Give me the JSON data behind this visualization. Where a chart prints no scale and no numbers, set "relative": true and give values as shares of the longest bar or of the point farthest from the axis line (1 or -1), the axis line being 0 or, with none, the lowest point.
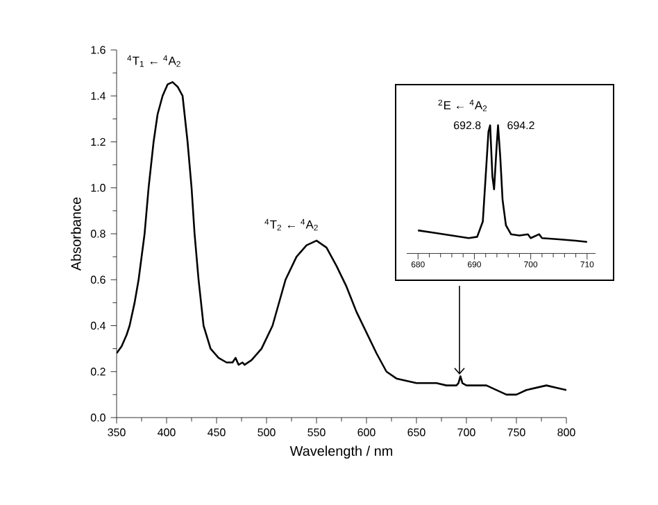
{
  "chart_data": [
    {
      "type": "line",
      "xlabel": "Wavelength / nm",
      "ylabel": "Absorbance",
      "color": "#000000",
      "xlim": [
        350,
        800
      ],
      "xticks": [
        350,
        400,
        450,
        500,
        550,
        600,
        650,
        700,
        750,
        800
      ],
      "ylim": [
        0,
        1.6
      ],
      "yticks": [
        {
          "value": 0,
          "label": "0.0"
        },
        0.2,
        0.4,
        0.6,
        0.8,
        {
          "value": 1,
          "label": "1.0"
        },
        1.2,
        1.4,
        1.6
      ],
      "annotations": [
        "$^{4}$T$_{1}$ ← $^{4}$A$_{2}$",
        "$^{4}$T$_{2}$ ← $^{4}$A$_{2}$"
      ],
      "x": [
        350,
        355,
        360,
        363,
        368,
        372,
        378,
        382,
        387,
        391,
        396,
        401,
        406,
        411,
        416,
        421,
        425,
        428,
        432,
        437,
        444,
        452,
        460,
        466,
        469,
        472,
        476,
        478,
        485,
        495,
        506,
        519,
        530,
        540,
        550,
        560,
        570,
        580,
        590,
        600,
        610,
        620,
        630,
        640,
        650,
        660,
        670,
        680,
        690,
        692,
        694,
        696,
        700,
        710,
        720,
        730,
        740,
        750,
        760,
        770,
        780,
        790,
        800
      ],
      "values": [
        0.28,
        0.31,
        0.36,
        0.4,
        0.5,
        0.6,
        0.8,
        1.0,
        1.2,
        1.32,
        1.4,
        1.45,
        1.46,
        1.44,
        1.4,
        1.2,
        1.0,
        0.8,
        0.6,
        0.4,
        0.3,
        0.26,
        0.24,
        0.24,
        0.26,
        0.23,
        0.24,
        0.23,
        0.25,
        0.3,
        0.4,
        0.6,
        0.7,
        0.75,
        0.77,
        0.74,
        0.66,
        0.57,
        0.46,
        0.37,
        0.28,
        0.2,
        0.17,
        0.16,
        0.15,
        0.15,
        0.15,
        0.14,
        0.14,
        0.15,
        0.18,
        0.15,
        0.14,
        0.14,
        0.14,
        0.12,
        0.1,
        0.1,
        0.12,
        0.13,
        0.14,
        0.13,
        0.12
      ]
    },
    {
      "type": "line",
      "relative": true,
      "tick_labels": "x",
      "color": "#000000",
      "xlim": [
        678,
        711.5
      ],
      "xticks": [
        680,
        690,
        700,
        710
      ],
      "annotations": [
        "$^{2}$E ← $^{4}$A$_{2}$",
        {
          "text": "692.8",
          "x": 692.8,
          "y": 1
        },
        {
          "text": "694.2",
          "x": 694.2,
          "y": 1
        }
      ],
      "x": [
        680,
        683,
        686,
        689,
        690.5,
        691.5,
        692,
        692.5,
        692.8,
        693.2,
        693.5,
        693.9,
        694.2,
        694.6,
        695,
        695.6,
        696.5,
        698,
        699.5,
        700,
        701.5,
        702,
        705,
        708,
        710
      ],
      "values": [
        0.18,
        0.16,
        0.14,
        0.12,
        0.13,
        0.25,
        0.6,
        0.95,
        1,
        0.6,
        0.5,
        0.8,
        1,
        0.75,
        0.42,
        0.22,
        0.15,
        0.14,
        0.15,
        0.12,
        0.15,
        0.12,
        0.11,
        0.1,
        0.09
      ]
    }
  ]
}
